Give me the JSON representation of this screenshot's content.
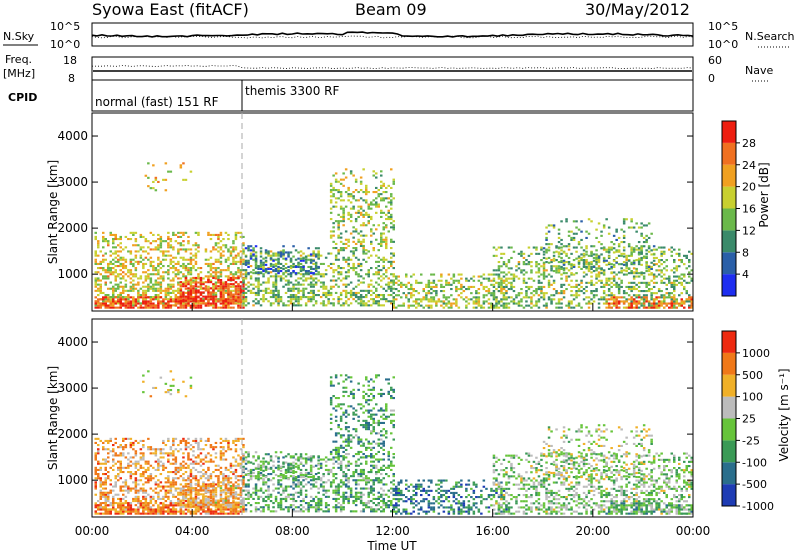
{
  "header": {
    "station": "Syowa East (fitACF)",
    "beam": "Beam 09",
    "date": "30/May/2012"
  },
  "top_panels": {
    "nsky_label": "N.Sky",
    "nsearch_label": "N.Search",
    "freq_label": [
      "Freq.",
      "[MHz]"
    ],
    "nave_label": "Nave",
    "cpid_label": "CPID",
    "nsky_ticks": [
      "10^5",
      "10^0"
    ],
    "nsearch_ticks": [
      "10^5",
      "10^0"
    ],
    "freq_ticks": [
      "18",
      "8"
    ],
    "nave_ticks": [
      "60",
      "0"
    ],
    "cpid_segments": [
      {
        "label": "normal (fast) 151 RF",
        "start_hour": 0,
        "end_hour": 6
      },
      {
        "label": "themis 3300 RF",
        "start_hour": 6,
        "end_hour": 24
      }
    ]
  },
  "chart_data": [
    {
      "type": "heatmap",
      "panel": "power",
      "xlabel": "",
      "ylabel": "Slant Range [km]",
      "xlim_hours": [
        0,
        24
      ],
      "ylim": [
        200,
        4500
      ],
      "y_ticks": [
        1000,
        2000,
        3000,
        4000
      ],
      "colorbar_label": "Power [dB]",
      "colorbar_ticks": [
        "4",
        "8",
        "12",
        "16",
        "20",
        "24",
        "28"
      ],
      "colorbar_range": [
        0,
        30
      ],
      "colors": [
        "#1e2ef0",
        "#2a5fa8",
        "#3a8a6a",
        "#6ab84a",
        "#c8d030",
        "#f0a020",
        "#f07020",
        "#ee1e10"
      ]
    },
    {
      "type": "heatmap",
      "panel": "velocity",
      "xlabel": "Time UT",
      "ylabel": "Slant Range [km]",
      "xlim_hours": [
        0,
        24
      ],
      "ylim": [
        200,
        4500
      ],
      "y_ticks": [
        1000,
        2000,
        3000,
        4000
      ],
      "x_ticks": [
        "00:00",
        "04:00",
        "08:00",
        "12:00",
        "16:00",
        "20:00",
        "00:00"
      ],
      "colorbar_label": "Velocity [m s⁻¹]",
      "colorbar_ticks": [
        "1000",
        "500",
        "100",
        "25",
        "-25",
        "-100",
        "-500",
        "-1000"
      ],
      "colors": [
        "#1e3cb4",
        "#2a6e8c",
        "#3a9a56",
        "#66c43a",
        "#bcbcbc",
        "#f0b028",
        "#f07818",
        "#ee2a10"
      ]
    }
  ]
}
